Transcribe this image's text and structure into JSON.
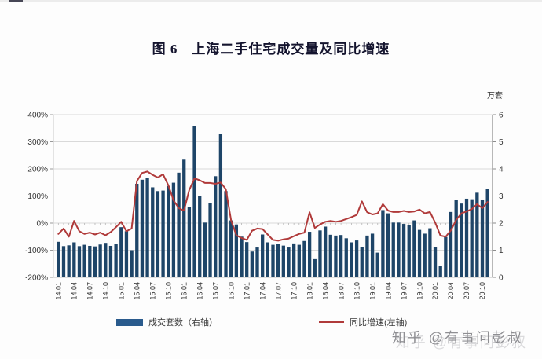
{
  "page": {
    "background": "#fdfdfd"
  },
  "title": {
    "text": "图 6　上海二手住宅成交量及同比增速"
  },
  "watermark": {
    "text": "知乎 @有事问彭叔"
  },
  "legend": [
    {
      "label": "成交套数（右轴）",
      "type": "bar",
      "color": "#2a5b8d"
    },
    {
      "label": "同比增速(左轴)",
      "type": "line",
      "color": "#b03a3a"
    }
  ],
  "chart_data": {
    "type": "combo bar+line",
    "title": "图 6 上海二手住宅成交量及同比增速",
    "x_tick_labels": [
      "14.01",
      "14.04",
      "14.07",
      "14.10",
      "15.01",
      "15.04",
      "15.07",
      "15.10",
      "16.01",
      "16.04",
      "16.07",
      "16.10",
      "17.01",
      "17.04",
      "17.07",
      "17.10",
      "18.01",
      "18.04",
      "18.07",
      "18.10",
      "19.01",
      "19.04",
      "19.07",
      "19.10",
      "20.01",
      "20.04",
      "20.07",
      "20.10"
    ],
    "tick_every": 3,
    "n_points": 83,
    "grid": true,
    "legend_position": "bottom",
    "left_axis": {
      "unit": "%",
      "min": -200,
      "max": 400,
      "ticks": [
        "400%",
        "300%",
        "200%",
        "100%",
        "0%",
        "-100%",
        "-200%"
      ]
    },
    "right_axis": {
      "title": "万套",
      "min": 0,
      "max": 6,
      "ticks": [
        "6",
        "5",
        "4",
        "3",
        "2",
        "1",
        "0"
      ]
    },
    "series": [
      {
        "name": "成交套数（右轴）",
        "type": "bar",
        "axis": "right",
        "color": "#1e4568",
        "values": [
          1.31,
          1.15,
          1.18,
          1.29,
          1.15,
          1.2,
          1.16,
          1.14,
          1.21,
          1.27,
          1.16,
          1.22,
          1.85,
          1.7,
          1.0,
          3.45,
          3.6,
          3.66,
          3.32,
          3.18,
          3.2,
          3.37,
          3.49,
          3.86,
          4.34,
          2.6,
          5.58,
          2.99,
          2.02,
          2.74,
          3.73,
          5.3,
          3.18,
          2.1,
          1.95,
          1.5,
          1.3,
          0.95,
          1.1,
          1.58,
          1.29,
          1.2,
          1.23,
          1.17,
          1.1,
          1.25,
          1.2,
          1.34,
          1.68,
          0.67,
          1.73,
          1.87,
          1.57,
          1.54,
          1.56,
          1.44,
          1.29,
          1.36,
          1.13,
          1.54,
          1.61,
          0.91,
          2.48,
          2.36,
          2.02,
          2.02,
          1.97,
          1.92,
          2.1,
          1.75,
          1.61,
          1.81,
          1.13,
          0.43,
          1.49,
          2.41,
          2.85,
          2.72,
          2.9,
          2.88,
          3.12,
          2.87,
          3.25
        ]
      },
      {
        "name": "同比增速(左轴)",
        "type": "line",
        "axis": "left",
        "color": "#b03a3a",
        "values": [
          -40,
          -20,
          -50,
          8,
          -30,
          -40,
          -35,
          -42,
          -35,
          -45,
          -33,
          -15,
          5,
          -30,
          -20,
          155,
          185,
          190,
          178,
          168,
          180,
          140,
          84,
          55,
          46,
          122,
          165,
          158,
          148,
          148,
          145,
          150,
          125,
          10,
          -45,
          -55,
          -62,
          -28,
          -20,
          -22,
          -42,
          -62,
          -65,
          -60,
          -57,
          -48,
          -40,
          -35,
          40,
          -18,
          -5,
          5,
          8,
          5,
          8,
          15,
          22,
          30,
          80,
          40,
          32,
          36,
          70,
          46,
          41,
          41,
          45,
          41,
          43,
          50,
          36,
          41,
          2,
          -46,
          -50,
          -27,
          12,
          36,
          43,
          52,
          70,
          55,
          78
        ]
      }
    ]
  }
}
